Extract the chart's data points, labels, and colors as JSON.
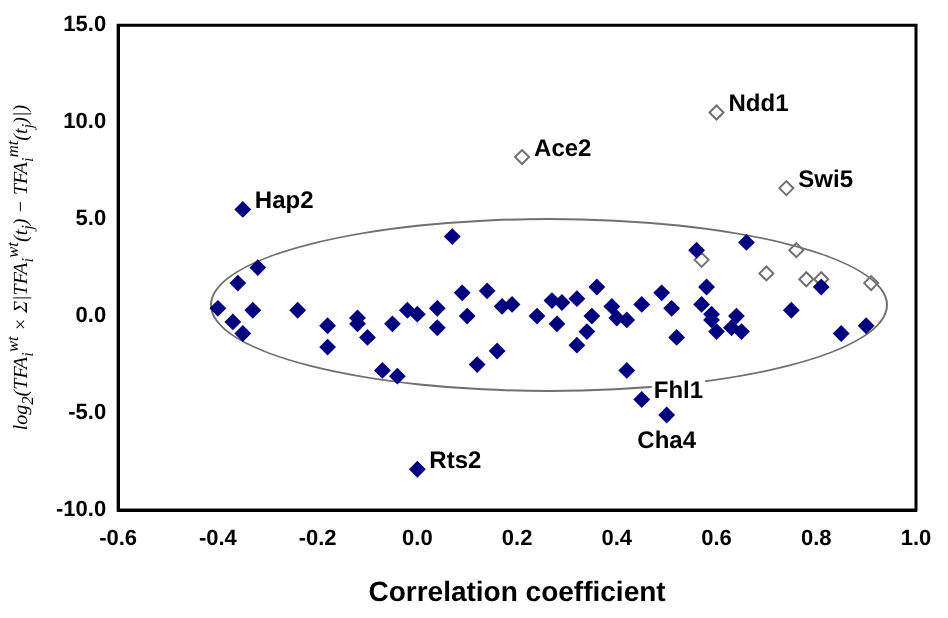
{
  "chart_data": {
    "type": "scatter",
    "xlabel": "Correlation coefficient",
    "ylabel": "log$_{2}$(TFA$_{i}$$^{wt}$ × Σ|TFA$_{i}$$^{wt}$(t$_{j}$) − TFA$_{i}$$^{mt}$(t$_{j}$)|)",
    "xlim": [
      -0.6,
      1.0
    ],
    "xticks": [
      {
        "value": -0.6,
        "label": "-0.6"
      },
      {
        "value": -0.4,
        "label": "-0.4"
      },
      {
        "value": -0.2,
        "label": "-0.2"
      },
      {
        "value": 0,
        "label": "0.0"
      },
      {
        "value": 0.2,
        "label": "0.2"
      },
      {
        "value": 0.4,
        "label": "0.4"
      },
      {
        "value": 0.6,
        "label": "0.6"
      },
      {
        "value": 0.8,
        "label": "0.8"
      },
      {
        "value": 1.0,
        "label": "1.0"
      }
    ],
    "ylim": [
      -10,
      15
    ],
    "yticks": [
      {
        "value": -10,
        "label": "-10.0"
      },
      {
        "value": -5,
        "label": "-5.0"
      },
      {
        "value": 0,
        "label": "0.0"
      },
      {
        "value": 5,
        "label": "5.0"
      },
      {
        "value": 10,
        "label": "10.0"
      },
      {
        "value": 15,
        "label": "15.0"
      }
    ],
    "grid": false,
    "legend": false,
    "marker": "diamond",
    "series": [
      {
        "color": "#00007f",
        "x": [
          -0.35,
          0.07,
          -0.32,
          -0.36,
          -0.4,
          -0.37,
          -0.33,
          -0.35,
          -0.24,
          -0.18,
          -0.18,
          -0.12,
          -0.12,
          -0.1,
          -0.07,
          -0.04,
          -0.05,
          -0.02,
          0.0,
          0.04,
          0.04,
          0.09,
          0.1,
          0.14,
          0.12,
          0.16,
          0.17,
          0.19,
          0.24,
          0.27,
          0.28,
          0.29,
          0.32,
          0.36,
          0.35,
          0.34,
          0.32,
          0.39,
          0.4,
          0.42,
          0.45,
          0.49,
          0.51,
          0.52,
          0.42,
          0.56,
          0.58,
          0.57,
          0.59,
          0.59,
          0.6,
          0.63,
          0.64,
          0.65,
          0.66,
          0.75,
          0.81,
          0.85,
          0.9,
          0.45,
          0.5,
          0.0
        ],
        "values": [
          5.5,
          4.1,
          2.5,
          1.7,
          0.4,
          -0.3,
          0.3,
          -0.9,
          0.3,
          -0.5,
          -1.6,
          -0.1,
          -0.4,
          -1.1,
          -2.8,
          -3.1,
          -0.4,
          0.3,
          0.1,
          0.4,
          -0.6,
          1.2,
          0.0,
          1.3,
          -2.5,
          -1.8,
          0.5,
          0.6,
          0.0,
          0.8,
          -0.4,
          0.7,
          0.9,
          1.5,
          0.0,
          -0.8,
          -1.5,
          0.5,
          -0.1,
          -0.2,
          0.6,
          1.2,
          0.4,
          -1.1,
          -2.8,
          3.4,
          1.5,
          0.6,
          0.1,
          -0.2,
          -0.8,
          -0.6,
          0.0,
          -0.8,
          3.8,
          0.3,
          1.5,
          -0.9,
          -0.5,
          -4.3,
          -5.1,
          -7.9
        ]
      },
      {
        "color": "#707070",
        "x": [
          0.6,
          0.21,
          0.74,
          0.57,
          0.7,
          0.76,
          0.78,
          0.81,
          0.91
        ],
        "values": [
          10.5,
          8.2,
          6.6,
          2.9,
          2.2,
          3.4,
          1.9,
          1.9,
          1.7
        ]
      }
    ],
    "annotations": [
      {
        "text": "Ndd1",
        "x": 0.6,
        "y": 10.5
      },
      {
        "text": "Ace2",
        "x": 0.21,
        "y": 8.2
      },
      {
        "text": "Swi5",
        "x": 0.74,
        "y": 6.6
      },
      {
        "text": "Hap2",
        "x": -0.35,
        "y": 5.5
      },
      {
        "text": "Fhl1",
        "x": 0.45,
        "y": -4.3
      },
      {
        "text": "Cha4",
        "x": 0.5,
        "y": -5.1
      },
      {
        "text": "Rts2",
        "x": 0.0,
        "y": -7.9
      }
    ]
  }
}
